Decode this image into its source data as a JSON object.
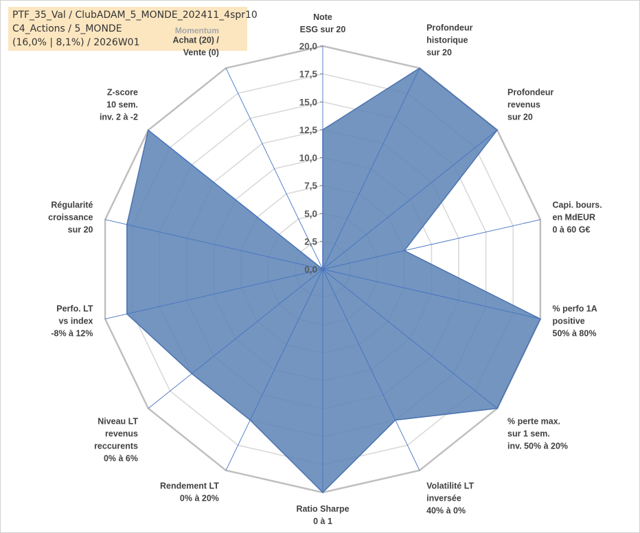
{
  "info_box": {
    "line1": "PTF_35_Val / ClubADAM_5_MONDE_202411_4spr10",
    "line2": "C4_Actions / 5_MONDE",
    "line3": "(16,0% | 8,1%) / 2026W01"
  },
  "colors": {
    "fill": "#5b82b4",
    "stroke": "#4a72b0",
    "axis": "#4472c4",
    "ring_outer": "#bfbfbf",
    "ring_inner": "#d9d9d9",
    "info_bg": "#fbe6c0",
    "momentum_label": "#a6a6a6"
  },
  "chart_data": {
    "type": "radar",
    "title": "",
    "rmin": 0,
    "rmax": 20,
    "tick_values": [
      0,
      2.5,
      5,
      7.5,
      10,
      12.5,
      15,
      17.5,
      20
    ],
    "tick_labels": [
      "0,0",
      "2,5",
      "5,0",
      "7,5",
      "10,0",
      "12,5",
      "15,0",
      "17,5",
      "20,0"
    ],
    "grid": true,
    "categories": [
      [
        "Note",
        "ESG sur 20"
      ],
      [
        "Profondeur",
        "historique",
        "sur 20"
      ],
      [
        "Profondeur",
        "revenus",
        "sur 20"
      ],
      [
        "Capi. bours.",
        "en MdEUR",
        "0 à 60 G€"
      ],
      [
        "% perfo 1A",
        "positive",
        "50% à 80%"
      ],
      [
        "% perte max.",
        "sur 1 sem.",
        "inv. 50% à 20%"
      ],
      [
        "Volatilité LT",
        "inversée",
        "40% à 0%"
      ],
      [
        "Ratio Sharpe",
        "0 à 1"
      ],
      [
        "Rendement LT",
        "0% à 20%"
      ],
      [
        "Niveau LT",
        "revenus",
        "reccurents",
        "0% à 6%"
      ],
      [
        "Perfo. LT",
        "vs index",
        "-8% à 12%"
      ],
      [
        "Régularité",
        "croissance",
        "sur 20"
      ],
      [
        "Z-score",
        "10 sem.",
        "inv. 2 à -2"
      ],
      [
        "Achat (20) /",
        "Vente (0)"
      ]
    ],
    "momentum_label": "Momentum",
    "series": [
      {
        "values": [
          12.5,
          20,
          20,
          7.5,
          20,
          20,
          15,
          20,
          15,
          15,
          18,
          18,
          20,
          0
        ]
      }
    ]
  }
}
